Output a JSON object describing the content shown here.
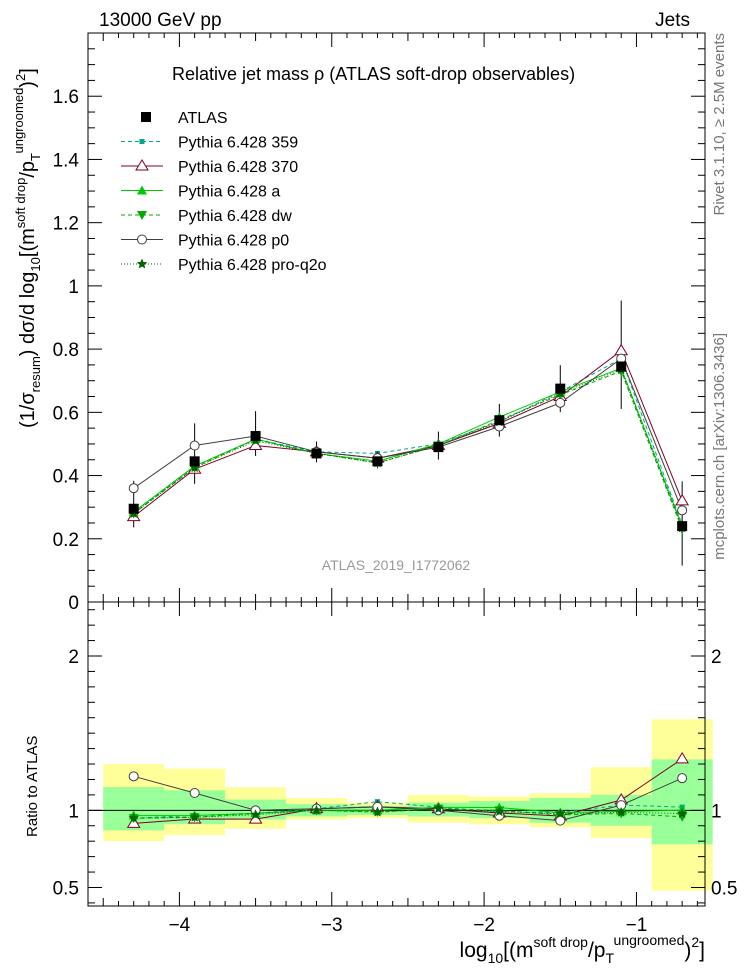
{
  "header": {
    "left": "13000 GeV pp",
    "right": "Jets"
  },
  "side_labels": {
    "rivet": "Rivet 3.1.10, ≥ 2.5M events",
    "mcplots": "mcplots.cern.ch [arXiv:1306.3436]"
  },
  "chart_data": {
    "type": "scatter",
    "title": "Relative jet mass  ρ (ATLAS soft-drop observables)",
    "watermark": "ATLAS_2019_I1772062",
    "xlim": [
      -4.6,
      -0.55
    ],
    "x_ticks": [
      -4,
      -3,
      -2,
      -1
    ],
    "x_tick_labels": [
      "−4",
      "−3",
      "−2",
      "−1"
    ],
    "xlabel": {
      "prefix": "log",
      "sub10": "10",
      "open": "[(m",
      "sup_sd": "soft drop",
      "slash_p": "/p",
      "sub_T": "T",
      "sup_ungroomed": "ungroomed",
      "close": ")",
      "sup_2": "2",
      "end": "]"
    },
    "ylabel": {
      "part1": "(1/σ",
      "sub_resum": "resum",
      "part2": ") dσ/d log",
      "sub10": "10",
      "part3": "[(m",
      "sup_sd": "soft drop",
      "part4": "/p",
      "sub_T": "T",
      "sup_ungroomed": "ungroomed",
      "part5": ")",
      "sup_2": "2",
      "part6": "]"
    },
    "main_ylim": [
      0,
      1.8
    ],
    "main_y_ticks": [
      0,
      0.2,
      0.4,
      0.6,
      0.8,
      1,
      1.2,
      1.4,
      1.6
    ],
    "main_y_tick_labels": [
      "0",
      "0.2",
      "0.4",
      "0.6",
      "0.8",
      "1",
      "1.2",
      "1.4",
      "1.6"
    ],
    "ratio_ylabel": "Ratio to ATLAS",
    "ratio_ylim": [
      0.38,
      2.35
    ],
    "ratio_y_ticks": [
      0.5,
      1,
      2
    ],
    "ratio_y_tick_labels": [
      "0.5",
      "1",
      "2"
    ],
    "bin_edges": [
      -4.5,
      -4.1,
      -3.7,
      -3.3,
      -2.9,
      -2.5,
      -2.1,
      -1.7,
      -1.3,
      -0.9,
      -0.5
    ],
    "x": [
      -4.3,
      -3.9,
      -3.5,
      -3.1,
      -2.7,
      -2.3,
      -1.9,
      -1.5,
      -1.1,
      -0.7
    ],
    "data": {
      "name": "ATLAS",
      "color": "#000000",
      "values": [
        0.295,
        0.445,
        0.525,
        0.47,
        0.445,
        0.49,
        0.575,
        0.675,
        0.745,
        0.24
      ],
      "band_inner": [
        [
          0.87,
          1.15
        ],
        [
          0.91,
          1.13
        ],
        [
          0.94,
          1.07
        ],
        [
          0.96,
          1.04
        ],
        [
          0.97,
          1.03
        ],
        [
          0.96,
          1.05
        ],
        [
          0.95,
          1.06
        ],
        [
          0.92,
          1.08
        ],
        [
          0.9,
          1.1
        ],
        [
          0.78,
          1.33
        ]
      ],
      "band_outer": [
        [
          0.8,
          1.3
        ],
        [
          0.84,
          1.27
        ],
        [
          0.88,
          1.15
        ],
        [
          0.94,
          1.08
        ],
        [
          0.95,
          1.05
        ],
        [
          0.92,
          1.1
        ],
        [
          0.91,
          1.09
        ],
        [
          0.89,
          1.11
        ],
        [
          0.82,
          1.28
        ],
        [
          0.48,
          1.59
        ]
      ]
    },
    "series": [
      {
        "name": "Pythia 6.428 359",
        "color": "#00a88a",
        "dash": "4,3",
        "marker": "square-small",
        "values": [
          0.28,
          0.43,
          0.515,
          0.475,
          0.47,
          0.5,
          0.57,
          0.665,
          0.77,
          0.245
        ]
      },
      {
        "name": "Pythia 6.428 370",
        "color": "#800020",
        "dash": "",
        "marker": "triangle-open",
        "values": [
          0.27,
          0.42,
          0.495,
          0.475,
          0.455,
          0.495,
          0.565,
          0.65,
          0.795,
          0.32
        ]
      },
      {
        "name": "Pythia 6.428 a",
        "color": "#00c800",
        "dash": "",
        "marker": "triangle-filled",
        "values": [
          0.285,
          0.43,
          0.515,
          0.47,
          0.445,
          0.5,
          0.585,
          0.665,
          0.74,
          0.24
        ]
      },
      {
        "name": "Pythia 6.428 dw",
        "color": "#00aa00",
        "dash": "4,3",
        "marker": "triangle-down",
        "values": [
          0.28,
          0.425,
          0.515,
          0.47,
          0.44,
          0.495,
          0.575,
          0.655,
          0.73,
          0.23
        ]
      },
      {
        "name": "Pythia 6.428 p0",
        "color": "#404040",
        "dash": "",
        "marker": "circle-open",
        "values": [
          0.36,
          0.495,
          0.525,
          0.475,
          0.455,
          0.49,
          0.555,
          0.63,
          0.77,
          0.29
        ]
      },
      {
        "name": "Pythia 6.428 pro-q2o",
        "color": "#006400",
        "dash": "1,2",
        "marker": "star",
        "values": [
          0.28,
          0.425,
          0.51,
          0.47,
          0.44,
          0.495,
          0.57,
          0.66,
          0.735,
          0.235
        ]
      }
    ]
  }
}
